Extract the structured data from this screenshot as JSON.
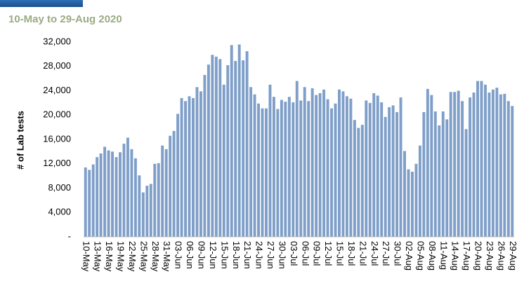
{
  "chart_data": {
    "type": "bar",
    "title": "10-May to 29-Aug 2020",
    "y_label": "# of Lab tests",
    "color": "#7f9fc9",
    "categories": [
      "10-May",
      null,
      null,
      "13-May",
      null,
      null,
      "16-May",
      null,
      null,
      "19-May",
      null,
      null,
      "22-May",
      null,
      null,
      "25-May",
      null,
      null,
      "28-May",
      null,
      null,
      "31-May",
      null,
      null,
      "03-Jun",
      null,
      null,
      "06-Jun",
      null,
      null,
      "09-Jun",
      null,
      null,
      "12-Jun",
      null,
      null,
      "15-Jun",
      null,
      null,
      "18-Jun",
      null,
      null,
      "21-Jun",
      null,
      null,
      "24-Jun",
      null,
      null,
      "27-Jun",
      null,
      null,
      "30-Jun",
      null,
      null,
      "03-Jul",
      null,
      null,
      "06-Jul",
      null,
      null,
      "09-Jul",
      null,
      null,
      "12-Jul",
      null,
      null,
      "15-Jul",
      null,
      null,
      "18-Jul",
      null,
      null,
      "21-Jul",
      null,
      null,
      "24-Jul",
      null,
      null,
      "27-Jul",
      null,
      null,
      "30-Jul",
      null,
      null,
      "02-Aug",
      null,
      null,
      "05-Aug",
      null,
      null,
      "08-Aug",
      null,
      null,
      "11-Aug",
      null,
      null,
      "14-Aug",
      null,
      null,
      "17-Aug",
      null,
      null,
      "20-Aug",
      null,
      null,
      "23-Aug",
      null,
      null,
      "26-Aug",
      null,
      null,
      "29-Aug"
    ],
    "values": [
      11400,
      11000,
      11900,
      13100,
      13700,
      14800,
      14200,
      14000,
      13100,
      13900,
      15300,
      16300,
      14400,
      12900,
      10100,
      7300,
      8400,
      8700,
      12000,
      12100,
      15000,
      14400,
      16600,
      17400,
      20200,
      22800,
      22300,
      23100,
      22800,
      24600,
      23900,
      26600,
      28300,
      29900,
      29600,
      29200,
      25000,
      28200,
      31500,
      28900,
      31600,
      29000,
      30500,
      24600,
      23400,
      21900,
      21100,
      21100,
      25000,
      23000,
      21000,
      22500,
      22200,
      23000,
      22100,
      25600,
      22400,
      24600,
      22300,
      24400,
      23300,
      23600,
      24200,
      22600,
      21100,
      21900,
      24200,
      23900,
      23100,
      22700,
      19200,
      17900,
      18400,
      22400,
      22000,
      23600,
      23200,
      22100,
      19700,
      21300,
      21600,
      20500,
      22900,
      14100,
      11100,
      10700,
      12000,
      15000,
      20500,
      24300,
      23300,
      20600,
      18300,
      20600,
      19300,
      23800,
      23800,
      24000,
      22300,
      17700,
      22900,
      23700,
      25600,
      25600,
      25000,
      23700,
      24200,
      24500,
      23400,
      23500,
      22300,
      21500
    ],
    "ylim": [
      0,
      32000
    ],
    "yticks": [
      {
        "value": 0,
        "label": "-"
      },
      {
        "value": 4000,
        "label": "4,000"
      },
      {
        "value": 8000,
        "label": "8,000"
      },
      {
        "value": 12000,
        "label": "12,000"
      },
      {
        "value": 16000,
        "label": "16,000"
      },
      {
        "value": 20000,
        "label": "20,000"
      },
      {
        "value": 24000,
        "label": "24,000"
      },
      {
        "value": 28000,
        "label": "28,000"
      },
      {
        "value": 32000,
        "label": "32,000"
      }
    ],
    "grid": false
  }
}
